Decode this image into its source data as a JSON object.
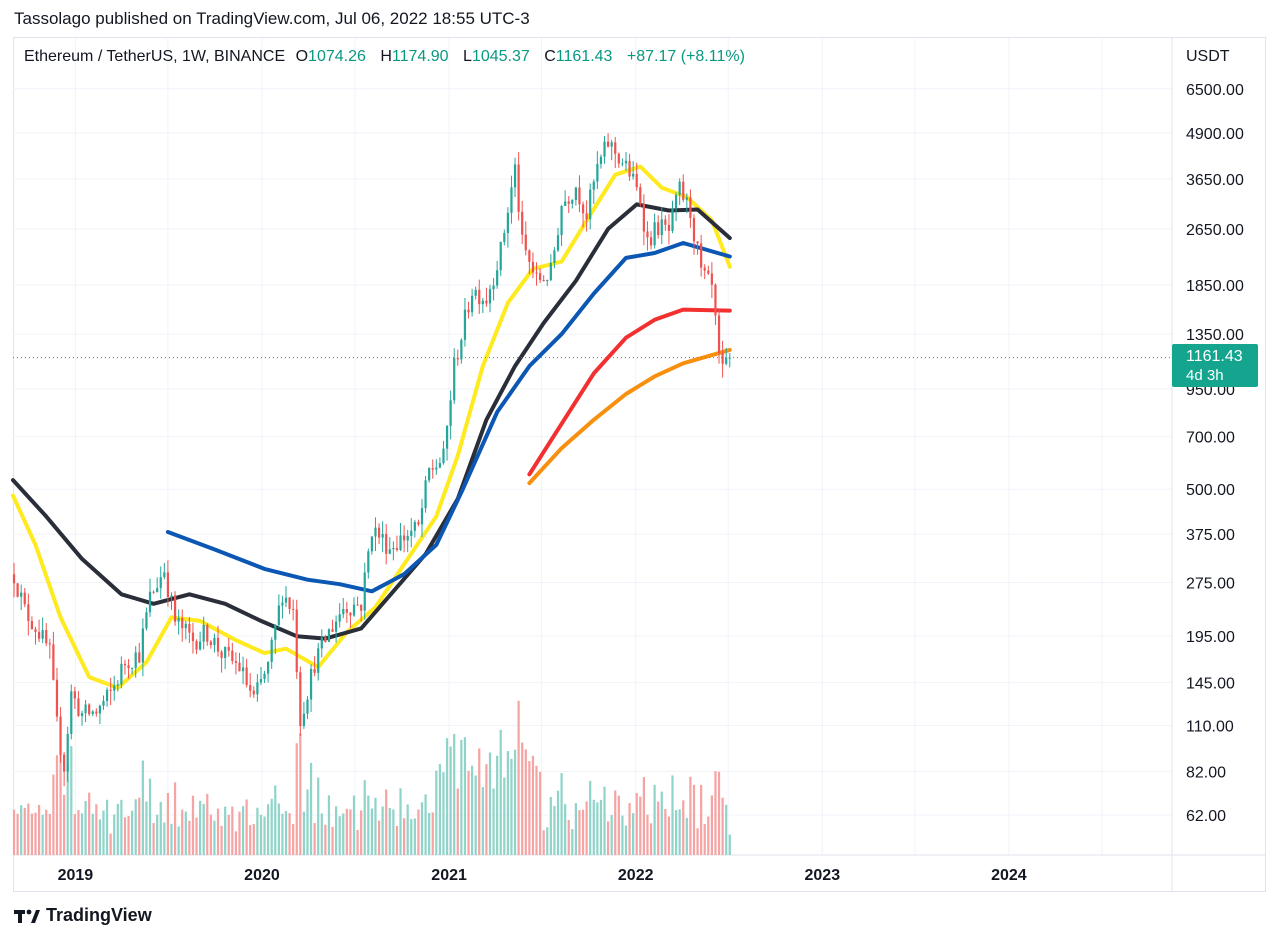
{
  "publish_line": "Tassolago published on TradingView.com, Jul 06, 2022 18:55 UTC-3",
  "header": {
    "symbol": "Ethereum / TetherUS, 1W, BINANCE",
    "o_label": "O",
    "o_value": "1074.26",
    "h_label": "H",
    "h_value": "1174.90",
    "l_label": "L",
    "l_value": "1045.37",
    "c_label": "C",
    "c_value": "1161.43",
    "change": "+87.17 (+8.11%)"
  },
  "price_badge": {
    "price": "1161.43",
    "countdown": "4d 3h"
  },
  "footer": {
    "brand": "TradingView"
  },
  "colors": {
    "up": "#26a69a",
    "down": "#ef5350",
    "vol_up": "#8fd3c9",
    "vol_down": "#f5a3a3",
    "ma_yellow": "#ffe91f",
    "ma_black": "#2a2e39",
    "ma_blue": "#0b57b3",
    "ma_red": "#f23030",
    "ma_orange": "#f7900f",
    "last_price": "#15a58f"
  },
  "chart_data": {
    "type": "candlestick",
    "scale": "log",
    "yaxis_unit": "USDT",
    "ylim": [
      48,
      9000
    ],
    "ytick_labels": [
      "6500.00",
      "4900.00",
      "3650.00",
      "2650.00",
      "1850.00",
      "1350.00",
      "950.00",
      "700.00",
      "500.00",
      "375.00",
      "275.00",
      "195.00",
      "145.00",
      "110.00",
      "82.00",
      "62.00"
    ],
    "xtick_labels": [
      "2019",
      "2020",
      "2021",
      "2022",
      "2023",
      "2024"
    ],
    "xlim": [
      "2018-09-01",
      "2024-11-15"
    ],
    "last_price": 1161.43,
    "price_anchors": [
      [
        "2018-09-03",
        290
      ],
      [
        "2018-09-24",
        230
      ],
      [
        "2018-10-22",
        200
      ],
      [
        "2018-11-12",
        175
      ],
      [
        "2018-11-26",
        110
      ],
      [
        "2018-12-10",
        85
      ],
      [
        "2018-12-24",
        135
      ],
      [
        "2019-01-14",
        118
      ],
      [
        "2019-02-11",
        120
      ],
      [
        "2019-03-11",
        135
      ],
      [
        "2019-04-08",
        165
      ],
      [
        "2019-05-06",
        175
      ],
      [
        "2019-05-27",
        250
      ],
      [
        "2019-06-24",
        300
      ],
      [
        "2019-07-15",
        215
      ],
      [
        "2019-08-19",
        190
      ],
      [
        "2019-09-16",
        200
      ],
      [
        "2019-10-14",
        175
      ],
      [
        "2019-11-18",
        160
      ],
      [
        "2019-12-16",
        130
      ],
      [
        "2020-01-13",
        160
      ],
      [
        "2020-02-10",
        260
      ],
      [
        "2020-03-02",
        230
      ],
      [
        "2020-03-16",
        115
      ],
      [
        "2020-04-13",
        165
      ],
      [
        "2020-05-11",
        200
      ],
      [
        "2020-06-08",
        235
      ],
      [
        "2020-07-13",
        240
      ],
      [
        "2020-08-03",
        390
      ],
      [
        "2020-09-07",
        345
      ],
      [
        "2020-10-12",
        375
      ],
      [
        "2020-11-02",
        390
      ],
      [
        "2020-11-23",
        560
      ],
      [
        "2020-12-21",
        610
      ],
      [
        "2021-01-11",
        1100
      ],
      [
        "2021-02-15",
        1800
      ],
      [
        "2021-03-15",
        1700
      ],
      [
        "2021-04-12",
        2300
      ],
      [
        "2021-05-10",
        3900
      ],
      [
        "2021-05-24",
        2400
      ],
      [
        "2021-06-21",
        1900
      ],
      [
        "2021-07-19",
        2000
      ],
      [
        "2021-08-09",
        3100
      ],
      [
        "2021-09-06",
        3500
      ],
      [
        "2021-09-27",
        2900
      ],
      [
        "2021-10-18",
        3900
      ],
      [
        "2021-11-08",
        4600
      ],
      [
        "2021-11-29",
        4200
      ],
      [
        "2021-12-20",
        3800
      ],
      [
        "2022-01-10",
        3200
      ],
      [
        "2022-01-24",
        2450
      ],
      [
        "2022-02-14",
        2700
      ],
      [
        "2022-03-07",
        2600
      ],
      [
        "2022-03-28",
        3400
      ],
      [
        "2022-04-18",
        2950
      ],
      [
        "2022-05-09",
        2000
      ],
      [
        "2022-05-30",
        1800
      ],
      [
        "2022-06-13",
        1150
      ],
      [
        "2022-06-20",
        1050
      ],
      [
        "2022-07-04",
        1161.43
      ]
    ],
    "volume_note": "relative weekly volume, green = up week, red = down week",
    "moving_averages": [
      {
        "color": "#ffe91f",
        "points": [
          [
            "2018-09-01",
            480
          ],
          [
            "2018-10-15",
            350
          ],
          [
            "2018-12-03",
            220
          ],
          [
            "2019-01-28",
            150
          ],
          [
            "2019-03-25",
            140
          ],
          [
            "2019-05-20",
            165
          ],
          [
            "2019-07-08",
            220
          ],
          [
            "2019-09-02",
            215
          ],
          [
            "2019-11-11",
            190
          ],
          [
            "2020-01-06",
            175
          ],
          [
            "2020-02-17",
            180
          ],
          [
            "2020-04-20",
            160
          ],
          [
            "2020-06-15",
            200
          ],
          [
            "2020-08-10",
            235
          ],
          [
            "2020-10-12",
            320
          ],
          [
            "2020-12-07",
            420
          ],
          [
            "2021-01-18",
            620
          ],
          [
            "2021-03-08",
            1100
          ],
          [
            "2021-04-26",
            1650
          ],
          [
            "2021-06-14",
            2050
          ],
          [
            "2021-08-09",
            2150
          ],
          [
            "2021-10-04",
            2900
          ],
          [
            "2021-11-22",
            3750
          ],
          [
            "2022-01-10",
            3950
          ],
          [
            "2022-02-21",
            3450
          ],
          [
            "2022-04-11",
            3250
          ],
          [
            "2022-05-30",
            2800
          ],
          [
            "2022-07-04",
            2080
          ]
        ]
      },
      {
        "color": "#2a2e39",
        "points": [
          [
            "2018-09-01",
            530
          ],
          [
            "2018-11-05",
            420
          ],
          [
            "2019-01-14",
            320
          ],
          [
            "2019-04-01",
            255
          ],
          [
            "2019-06-03",
            240
          ],
          [
            "2019-08-12",
            255
          ],
          [
            "2019-10-21",
            240
          ],
          [
            "2019-12-30",
            215
          ],
          [
            "2020-03-09",
            195
          ],
          [
            "2020-05-04",
            192
          ],
          [
            "2020-07-13",
            205
          ],
          [
            "2020-09-14",
            260
          ],
          [
            "2020-11-16",
            330
          ],
          [
            "2021-01-18",
            470
          ],
          [
            "2021-03-15",
            780
          ],
          [
            "2021-05-10",
            1100
          ],
          [
            "2021-07-05",
            1450
          ],
          [
            "2021-09-06",
            1900
          ],
          [
            "2021-11-08",
            2650
          ],
          [
            "2022-01-03",
            3100
          ],
          [
            "2022-03-07",
            2980
          ],
          [
            "2022-05-02",
            3000
          ],
          [
            "2022-07-04",
            2500
          ]
        ]
      },
      {
        "color": "#0b57b3",
        "points": [
          [
            "2019-07-01",
            380
          ],
          [
            "2019-09-30",
            340
          ],
          [
            "2020-01-06",
            300
          ],
          [
            "2020-03-30",
            280
          ],
          [
            "2020-06-01",
            272
          ],
          [
            "2020-08-03",
            260
          ],
          [
            "2020-10-05",
            290
          ],
          [
            "2020-12-07",
            350
          ],
          [
            "2021-01-25",
            490
          ],
          [
            "2021-04-05",
            820
          ],
          [
            "2021-06-07",
            1100
          ],
          [
            "2021-08-09",
            1350
          ],
          [
            "2021-10-11",
            1750
          ],
          [
            "2021-12-13",
            2200
          ],
          [
            "2022-02-07",
            2270
          ],
          [
            "2022-04-04",
            2420
          ],
          [
            "2022-07-04",
            2220
          ]
        ]
      },
      {
        "color": "#f23030",
        "points": [
          [
            "2021-06-07",
            550
          ],
          [
            "2021-08-09",
            760
          ],
          [
            "2021-10-11",
            1050
          ],
          [
            "2021-12-13",
            1320
          ],
          [
            "2022-02-07",
            1480
          ],
          [
            "2022-04-04",
            1580
          ],
          [
            "2022-07-04",
            1570
          ]
        ]
      },
      {
        "color": "#f7900f",
        "points": [
          [
            "2021-06-07",
            520
          ],
          [
            "2021-08-09",
            650
          ],
          [
            "2021-10-11",
            780
          ],
          [
            "2021-12-13",
            920
          ],
          [
            "2022-02-07",
            1030
          ],
          [
            "2022-04-04",
            1120
          ],
          [
            "2022-07-04",
            1220
          ]
        ]
      }
    ]
  }
}
